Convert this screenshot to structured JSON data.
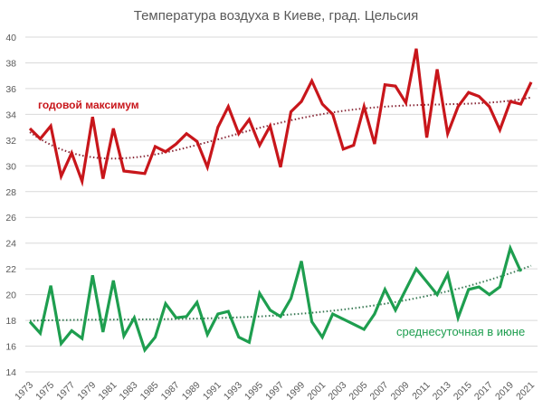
{
  "chart_data": {
    "type": "line",
    "title": "Температура воздуха в Киеве, град. Цельсия",
    "xlabel": "",
    "ylabel": "",
    "ylim": [
      14,
      40
    ],
    "yticks": [
      14,
      16,
      18,
      20,
      22,
      24,
      26,
      28,
      30,
      32,
      34,
      36,
      38,
      40
    ],
    "xlim": [
      1973,
      2021
    ],
    "xticks": [
      1973,
      1975,
      1977,
      1979,
      1981,
      1983,
      1985,
      1987,
      1989,
      1991,
      1993,
      1995,
      1997,
      1999,
      2001,
      2003,
      2005,
      2007,
      2009,
      2011,
      2013,
      2015,
      2017,
      2019,
      2021
    ],
    "grid": "horizontal",
    "legend": "inline labels",
    "x": [
      1973,
      1974,
      1975,
      1976,
      1977,
      1978,
      1979,
      1980,
      1981,
      1982,
      1983,
      1984,
      1985,
      1986,
      1987,
      1988,
      1989,
      1990,
      1991,
      1992,
      1993,
      1994,
      1995,
      1996,
      1997,
      1998,
      1999,
      2000,
      2001,
      2002,
      2003,
      2004,
      2005,
      2006,
      2007,
      2008,
      2009,
      2010,
      2011,
      2012,
      2013,
      2014,
      2015,
      2016,
      2017,
      2018,
      2019,
      2020,
      2021
    ],
    "series": [
      {
        "name": "годовой максимум",
        "color": "#c8161b",
        "trendline": "polynomial, dotted",
        "values": [
          32.9,
          32.1,
          33.1,
          29.2,
          31.0,
          28.8,
          33.8,
          29.0,
          32.9,
          29.6,
          29.5,
          29.4,
          31.5,
          31.1,
          31.7,
          32.5,
          31.9,
          29.9,
          33.0,
          34.6,
          32.5,
          33.6,
          31.6,
          33.1,
          29.9,
          34.2,
          35.0,
          36.6,
          34.8,
          34.0,
          31.3,
          31.6,
          34.6,
          31.7,
          36.3,
          36.2,
          34.9,
          39.1,
          32.2,
          37.5,
          32.5,
          34.6,
          35.7,
          35.4,
          34.6,
          32.8,
          35.0,
          34.8,
          36.5
        ]
      },
      {
        "name": "среднесуточная в июне",
        "color": "#1e9e4f",
        "trendline": "polynomial, dotted",
        "values": [
          17.9,
          17.0,
          20.7,
          16.2,
          17.2,
          16.6,
          21.5,
          17.1,
          21.1,
          16.8,
          18.2,
          15.7,
          16.7,
          19.3,
          18.2,
          18.3,
          19.4,
          16.9,
          18.5,
          18.7,
          16.7,
          16.3,
          20.1,
          18.8,
          18.3,
          19.7,
          22.6,
          17.9,
          16.7,
          18.5,
          18.1,
          17.7,
          17.3,
          18.5,
          20.4,
          18.8,
          20.4,
          22.0,
          21.0,
          20.0,
          21.6,
          18.2,
          20.4,
          20.6,
          20.0,
          20.6,
          23.6,
          21.8,
          null
        ]
      }
    ]
  }
}
